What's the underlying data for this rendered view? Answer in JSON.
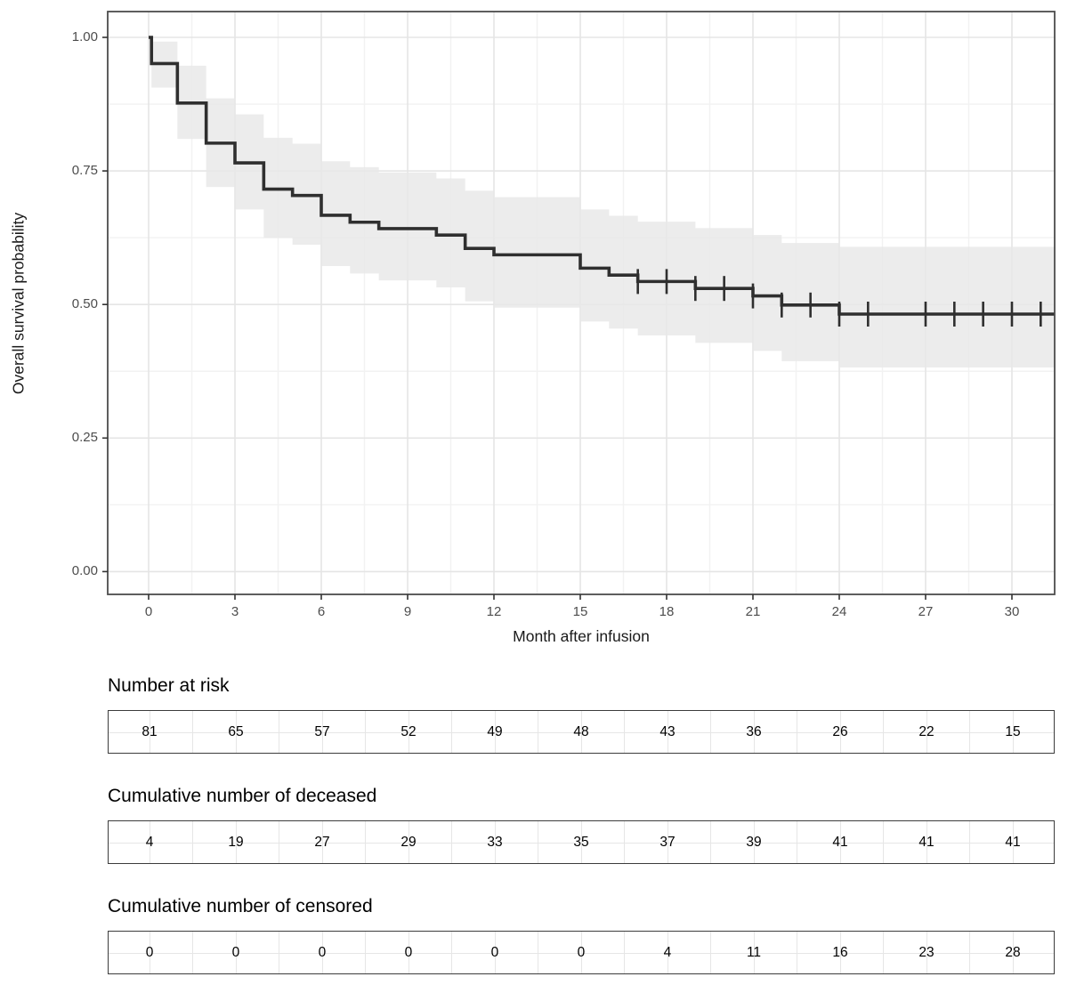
{
  "chart_data": {
    "type": "line",
    "subtype": "kaplan-meier-step-with-ci-band",
    "title": "",
    "xlabel": "Month after infusion",
    "ylabel": "Overall survival probability",
    "x_ticks": [
      0,
      3,
      6,
      9,
      12,
      15,
      18,
      21,
      24,
      27,
      30
    ],
    "x_minor_step": 1.5,
    "y_tick_labels": [
      "0.00",
      "0.25",
      "0.50",
      "0.75",
      "1.00"
    ],
    "y_tick_values": [
      0,
      0.25,
      0.5,
      0.75,
      1
    ],
    "y_minor_step": 0.125,
    "xlim": [
      -1.42,
      31.5
    ],
    "ylim": [
      -0.042,
      1.048
    ],
    "grid": true,
    "legend": "none",
    "end_time": 31.5,
    "steps": [
      {
        "t": 0,
        "s": 1.0,
        "lo": 1.0,
        "hi": 1.0
      },
      {
        "t": 0.1,
        "s": 0.951,
        "lo": 0.906,
        "hi": 0.992
      },
      {
        "t": 1,
        "s": 0.877,
        "lo": 0.81,
        "hi": 0.947
      },
      {
        "t": 2,
        "s": 0.802,
        "lo": 0.72,
        "hi": 0.886
      },
      {
        "t": 3,
        "s": 0.765,
        "lo": 0.678,
        "hi": 0.856
      },
      {
        "t": 4,
        "s": 0.716,
        "lo": 0.625,
        "hi": 0.812
      },
      {
        "t": 5,
        "s": 0.704,
        "lo": 0.612,
        "hi": 0.801
      },
      {
        "t": 6,
        "s": 0.667,
        "lo": 0.572,
        "hi": 0.768
      },
      {
        "t": 7,
        "s": 0.654,
        "lo": 0.558,
        "hi": 0.757
      },
      {
        "t": 8,
        "s": 0.642,
        "lo": 0.545,
        "hi": 0.747
      },
      {
        "t": 10,
        "s": 0.63,
        "lo": 0.532,
        "hi": 0.736
      },
      {
        "t": 11,
        "s": 0.605,
        "lo": 0.506,
        "hi": 0.713
      },
      {
        "t": 12,
        "s": 0.593,
        "lo": 0.494,
        "hi": 0.701
      },
      {
        "t": 15,
        "s": 0.568,
        "lo": 0.468,
        "hi": 0.678
      },
      {
        "t": 16,
        "s": 0.555,
        "lo": 0.455,
        "hi": 0.666
      },
      {
        "t": 17,
        "s": 0.543,
        "lo": 0.442,
        "hi": 0.655
      },
      {
        "t": 19,
        "s": 0.53,
        "lo": 0.428,
        "hi": 0.643
      },
      {
        "t": 21,
        "s": 0.516,
        "lo": 0.413,
        "hi": 0.63
      },
      {
        "t": 22,
        "s": 0.499,
        "lo": 0.394,
        "hi": 0.615
      },
      {
        "t": 24,
        "s": 0.482,
        "lo": 0.382,
        "hi": 0.608
      }
    ],
    "censor_marks": [
      {
        "t": 17,
        "s": 0.543
      },
      {
        "t": 18,
        "s": 0.543
      },
      {
        "t": 19,
        "s": 0.53
      },
      {
        "t": 20,
        "s": 0.53
      },
      {
        "t": 21,
        "s": 0.516
      },
      {
        "t": 22,
        "s": 0.499
      },
      {
        "t": 23,
        "s": 0.499
      },
      {
        "t": 24,
        "s": 0.482
      },
      {
        "t": 25,
        "s": 0.482
      },
      {
        "t": 27,
        "s": 0.482
      },
      {
        "t": 28,
        "s": 0.482
      },
      {
        "t": 29,
        "s": 0.482
      },
      {
        "t": 30,
        "s": 0.482
      },
      {
        "t": 31,
        "s": 0.482
      }
    ],
    "colors": {
      "curve": "#2f2f2f",
      "band": "#e8e8e8",
      "grid_major": "#e5e5e5",
      "grid_minor": "#f2f2f2",
      "panel_border": "#4d4d4d",
      "axis_tick": "#333333",
      "tick_label": "#4d4d4d",
      "axis_title": "#1a1a1a",
      "table_border": "#3c3c3c",
      "table_grid": "#e6e6e6"
    }
  },
  "risk_tables": [
    {
      "title": "Number at risk",
      "values": [
        81,
        65,
        57,
        52,
        49,
        48,
        43,
        36,
        26,
        22,
        15
      ]
    },
    {
      "title": "Cumulative number of deceased",
      "values": [
        4,
        19,
        27,
        29,
        33,
        35,
        37,
        39,
        41,
        41,
        41
      ]
    },
    {
      "title": "Cumulative number of censored",
      "values": [
        0,
        0,
        0,
        0,
        0,
        0,
        4,
        11,
        16,
        23,
        28
      ]
    }
  ]
}
